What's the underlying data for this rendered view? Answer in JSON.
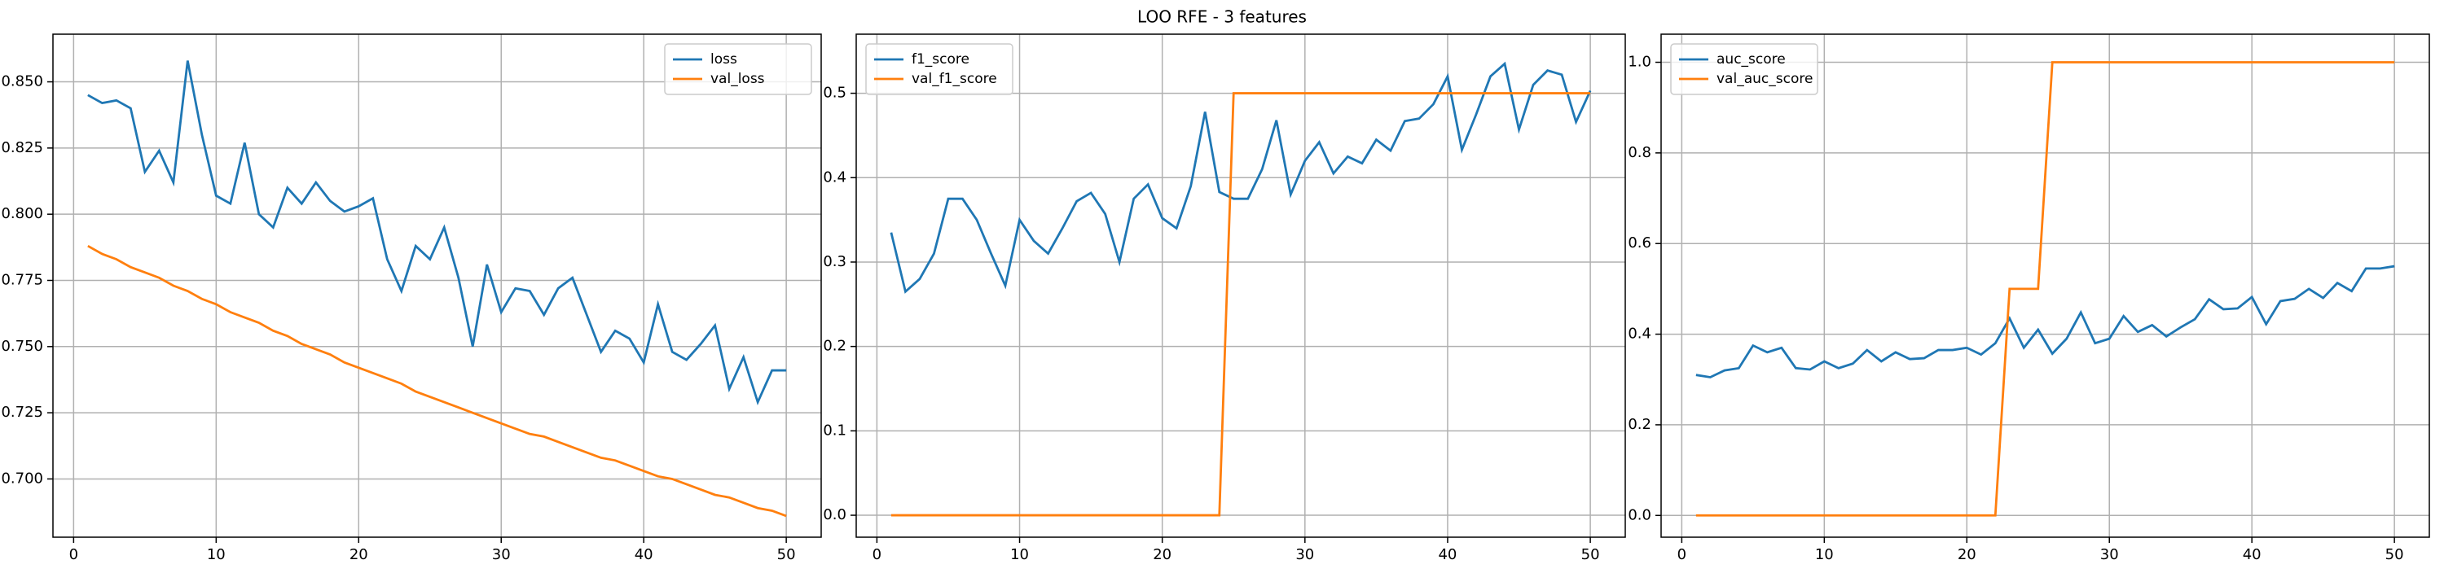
{
  "title": "LOO RFE - 3 features",
  "chart_data": [
    {
      "type": "line",
      "legend": "upper right",
      "grid": true,
      "x": [
        1,
        2,
        3,
        4,
        5,
        6,
        7,
        8,
        9,
        10,
        11,
        12,
        13,
        14,
        15,
        16,
        17,
        18,
        19,
        20,
        21,
        22,
        23,
        24,
        25,
        26,
        27,
        28,
        29,
        30,
        31,
        32,
        33,
        34,
        35,
        36,
        37,
        38,
        39,
        40,
        41,
        42,
        43,
        44,
        45,
        46,
        47,
        48,
        49,
        50
      ],
      "xlim": [
        -1.45,
        52.45
      ],
      "xticks": [
        0,
        10,
        20,
        30,
        40,
        50
      ],
      "ylim": [
        0.678,
        0.868
      ],
      "yticks": [
        {
          "value": 0.7,
          "label": "0.700"
        },
        {
          "value": 0.725,
          "label": "0.725"
        },
        {
          "value": 0.75,
          "label": "0.750"
        },
        {
          "value": 0.775,
          "label": "0.775"
        },
        {
          "value": 0.8,
          "label": "0.800"
        },
        {
          "value": 0.825,
          "label": "0.825"
        },
        {
          "value": 0.85,
          "label": "0.850"
        }
      ],
      "series": [
        {
          "name": "loss",
          "color": "#1f77b4",
          "values": [
            0.845,
            0.842,
            0.843,
            0.84,
            0.816,
            0.824,
            0.812,
            0.858,
            0.83,
            0.807,
            0.804,
            0.827,
            0.8,
            0.795,
            0.81,
            0.804,
            0.812,
            0.805,
            0.801,
            0.803,
            0.806,
            0.783,
            0.771,
            0.788,
            0.783,
            0.795,
            0.776,
            0.75,
            0.781,
            0.763,
            0.772,
            0.771,
            0.762,
            0.772,
            0.776,
            0.762,
            0.748,
            0.756,
            0.753,
            0.744,
            0.766,
            0.748,
            0.745,
            0.751,
            0.758,
            0.734,
            0.746,
            0.729,
            0.741,
            0.741
          ]
        },
        {
          "name": "val_loss",
          "color": "#ff7f0e",
          "values": [
            0.788,
            0.785,
            0.783,
            0.78,
            0.778,
            0.776,
            0.773,
            0.771,
            0.768,
            0.766,
            0.763,
            0.761,
            0.759,
            0.756,
            0.754,
            0.751,
            0.749,
            0.747,
            0.744,
            0.742,
            0.74,
            0.738,
            0.736,
            0.733,
            0.731,
            0.729,
            0.727,
            0.725,
            0.723,
            0.721,
            0.719,
            0.717,
            0.716,
            0.714,
            0.712,
            0.71,
            0.708,
            0.707,
            0.705,
            0.703,
            0.701,
            0.7,
            0.698,
            0.696,
            0.694,
            0.693,
            0.691,
            0.689,
            0.688,
            0.686
          ]
        }
      ]
    },
    {
      "type": "line",
      "legend": "upper left",
      "grid": true,
      "x": [
        1,
        2,
        3,
        4,
        5,
        6,
        7,
        8,
        9,
        10,
        11,
        12,
        13,
        14,
        15,
        16,
        17,
        18,
        19,
        20,
        21,
        22,
        23,
        24,
        25,
        26,
        27,
        28,
        29,
        30,
        31,
        32,
        33,
        34,
        35,
        36,
        37,
        38,
        39,
        40,
        41,
        42,
        43,
        44,
        45,
        46,
        47,
        48,
        49,
        50
      ],
      "xlim": [
        -1.45,
        52.45
      ],
      "xticks": [
        0,
        10,
        20,
        30,
        40,
        50
      ],
      "ylim": [
        -0.026,
        0.57
      ],
      "yticks": [
        {
          "value": 0,
          "label": "0.0"
        },
        {
          "value": 0.1,
          "label": "0.1"
        },
        {
          "value": 0.2,
          "label": "0.2"
        },
        {
          "value": 0.3,
          "label": "0.3"
        },
        {
          "value": 0.4,
          "label": "0.4"
        },
        {
          "value": 0.5,
          "label": "0.5"
        }
      ],
      "series": [
        {
          "name": "f1_score",
          "color": "#1f77b4",
          "values": [
            0.335,
            0.265,
            0.28,
            0.31,
            0.375,
            0.375,
            0.35,
            0.31,
            0.272,
            0.35,
            0.325,
            0.31,
            0.34,
            0.372,
            0.382,
            0.357,
            0.3,
            0.375,
            0.392,
            0.352,
            0.34,
            0.39,
            0.478,
            0.383,
            0.375,
            0.375,
            0.41,
            0.468,
            0.38,
            0.42,
            0.442,
            0.405,
            0.425,
            0.417,
            0.445,
            0.432,
            0.467,
            0.47,
            0.487,
            0.52,
            0.433,
            0.475,
            0.52,
            0.535,
            0.457,
            0.51,
            0.527,
            0.522,
            0.466,
            0.503
          ]
        },
        {
          "name": "val_f1_score",
          "color": "#ff7f0e",
          "values": [
            0,
            0,
            0,
            0,
            0,
            0,
            0,
            0,
            0,
            0,
            0,
            0,
            0,
            0,
            0,
            0,
            0,
            0,
            0,
            0,
            0,
            0,
            0,
            0,
            0.5,
            0.5,
            0.5,
            0.5,
            0.5,
            0.5,
            0.5,
            0.5,
            0.5,
            0.5,
            0.5,
            0.5,
            0.5,
            0.5,
            0.5,
            0.5,
            0.5,
            0.5,
            0.5,
            0.5,
            0.5,
            0.5,
            0.5,
            0.5,
            0.5,
            0.5
          ]
        }
      ]
    },
    {
      "type": "line",
      "legend": "upper left",
      "grid": true,
      "x": [
        1,
        2,
        3,
        4,
        5,
        6,
        7,
        8,
        9,
        10,
        11,
        12,
        13,
        14,
        15,
        16,
        17,
        18,
        19,
        20,
        21,
        22,
        23,
        24,
        25,
        26,
        27,
        28,
        29,
        30,
        31,
        32,
        33,
        34,
        35,
        36,
        37,
        38,
        39,
        40,
        41,
        42,
        43,
        44,
        45,
        46,
        47,
        48,
        49,
        50
      ],
      "xlim": [
        -1.45,
        52.45
      ],
      "xticks": [
        0,
        10,
        20,
        30,
        40,
        50
      ],
      "ylim": [
        -0.048,
        1.062
      ],
      "yticks": [
        {
          "value": 0,
          "label": "0.0"
        },
        {
          "value": 0.2,
          "label": "0.2"
        },
        {
          "value": 0.4,
          "label": "0.4"
        },
        {
          "value": 0.6,
          "label": "0.6"
        },
        {
          "value": 0.8,
          "label": "0.8"
        },
        {
          "value": 1,
          "label": "1.0"
        }
      ],
      "series": [
        {
          "name": "auc_score",
          "color": "#1f77b4",
          "values": [
            0.31,
            0.305,
            0.32,
            0.325,
            0.375,
            0.36,
            0.37,
            0.325,
            0.322,
            0.34,
            0.325,
            0.335,
            0.365,
            0.34,
            0.36,
            0.345,
            0.347,
            0.365,
            0.365,
            0.37,
            0.355,
            0.38,
            0.435,
            0.37,
            0.41,
            0.357,
            0.39,
            0.448,
            0.38,
            0.39,
            0.44,
            0.405,
            0.42,
            0.395,
            0.415,
            0.433,
            0.477,
            0.455,
            0.457,
            0.482,
            0.422,
            0.473,
            0.478,
            0.5,
            0.48,
            0.513,
            0.495,
            0.545,
            0.545,
            0.55
          ]
        },
        {
          "name": "val_auc_score",
          "color": "#ff7f0e",
          "values": [
            0,
            0,
            0,
            0,
            0,
            0,
            0,
            0,
            0,
            0,
            0,
            0,
            0,
            0,
            0,
            0,
            0,
            0,
            0,
            0,
            0,
            0,
            0.5,
            0.5,
            0.5,
            1,
            1,
            1,
            1,
            1,
            1,
            1,
            1,
            1,
            1,
            1,
            1,
            1,
            1,
            1,
            1,
            1,
            1,
            1,
            1,
            1,
            1,
            1,
            1,
            1
          ]
        }
      ]
    }
  ]
}
